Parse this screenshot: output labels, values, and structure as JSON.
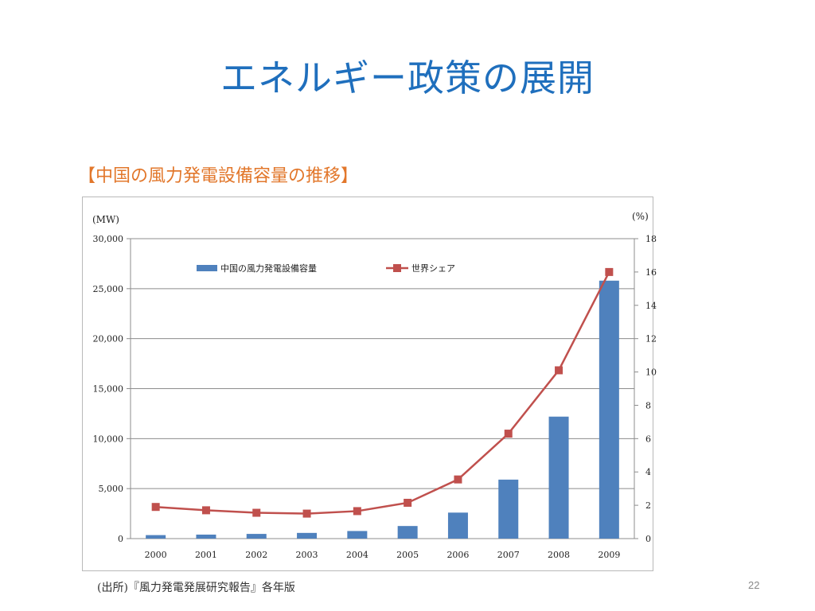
{
  "slide": {
    "title": "エネルギー政策の展開",
    "heading": "【中国の風力発電設備容量の推移】",
    "source": "(出所)『風力発電発展研究報告』各年版",
    "page_number": "22"
  },
  "chart_data": {
    "type": "bar+line",
    "title": "",
    "categories": [
      "2000",
      "2001",
      "2002",
      "2003",
      "2004",
      "2005",
      "2006",
      "2007",
      "2008",
      "2009"
    ],
    "y_left": {
      "unit_label": "(MW)",
      "range": [
        0,
        30000
      ],
      "ticks": [
        0,
        5000,
        10000,
        15000,
        20000,
        25000,
        30000
      ],
      "tick_labels": [
        "0",
        "5,000",
        "10,000",
        "15,000",
        "20,000",
        "25,000",
        "30,000"
      ]
    },
    "y_right": {
      "unit_label": "(%)",
      "range": [
        0,
        18
      ],
      "ticks": [
        0,
        2,
        4,
        6,
        8,
        10,
        12,
        14,
        16,
        18
      ],
      "tick_labels": [
        "0",
        "2",
        "4",
        "6",
        "8",
        "10",
        "12",
        "14",
        "16",
        "18"
      ]
    },
    "grid": true,
    "legend_position": "top",
    "series": [
      {
        "name": "中国の風力発電設備容量",
        "type": "bar",
        "axis": "left",
        "color": "#4f81bd",
        "values": [
          350,
          400,
          470,
          570,
          760,
          1260,
          2600,
          5900,
          12200,
          25800
        ]
      },
      {
        "name": "世界シェア",
        "type": "line",
        "axis": "right",
        "color": "#c0504d",
        "values": [
          1.9,
          1.7,
          1.55,
          1.5,
          1.65,
          2.15,
          3.55,
          6.3,
          10.1,
          16.0
        ]
      }
    ]
  }
}
